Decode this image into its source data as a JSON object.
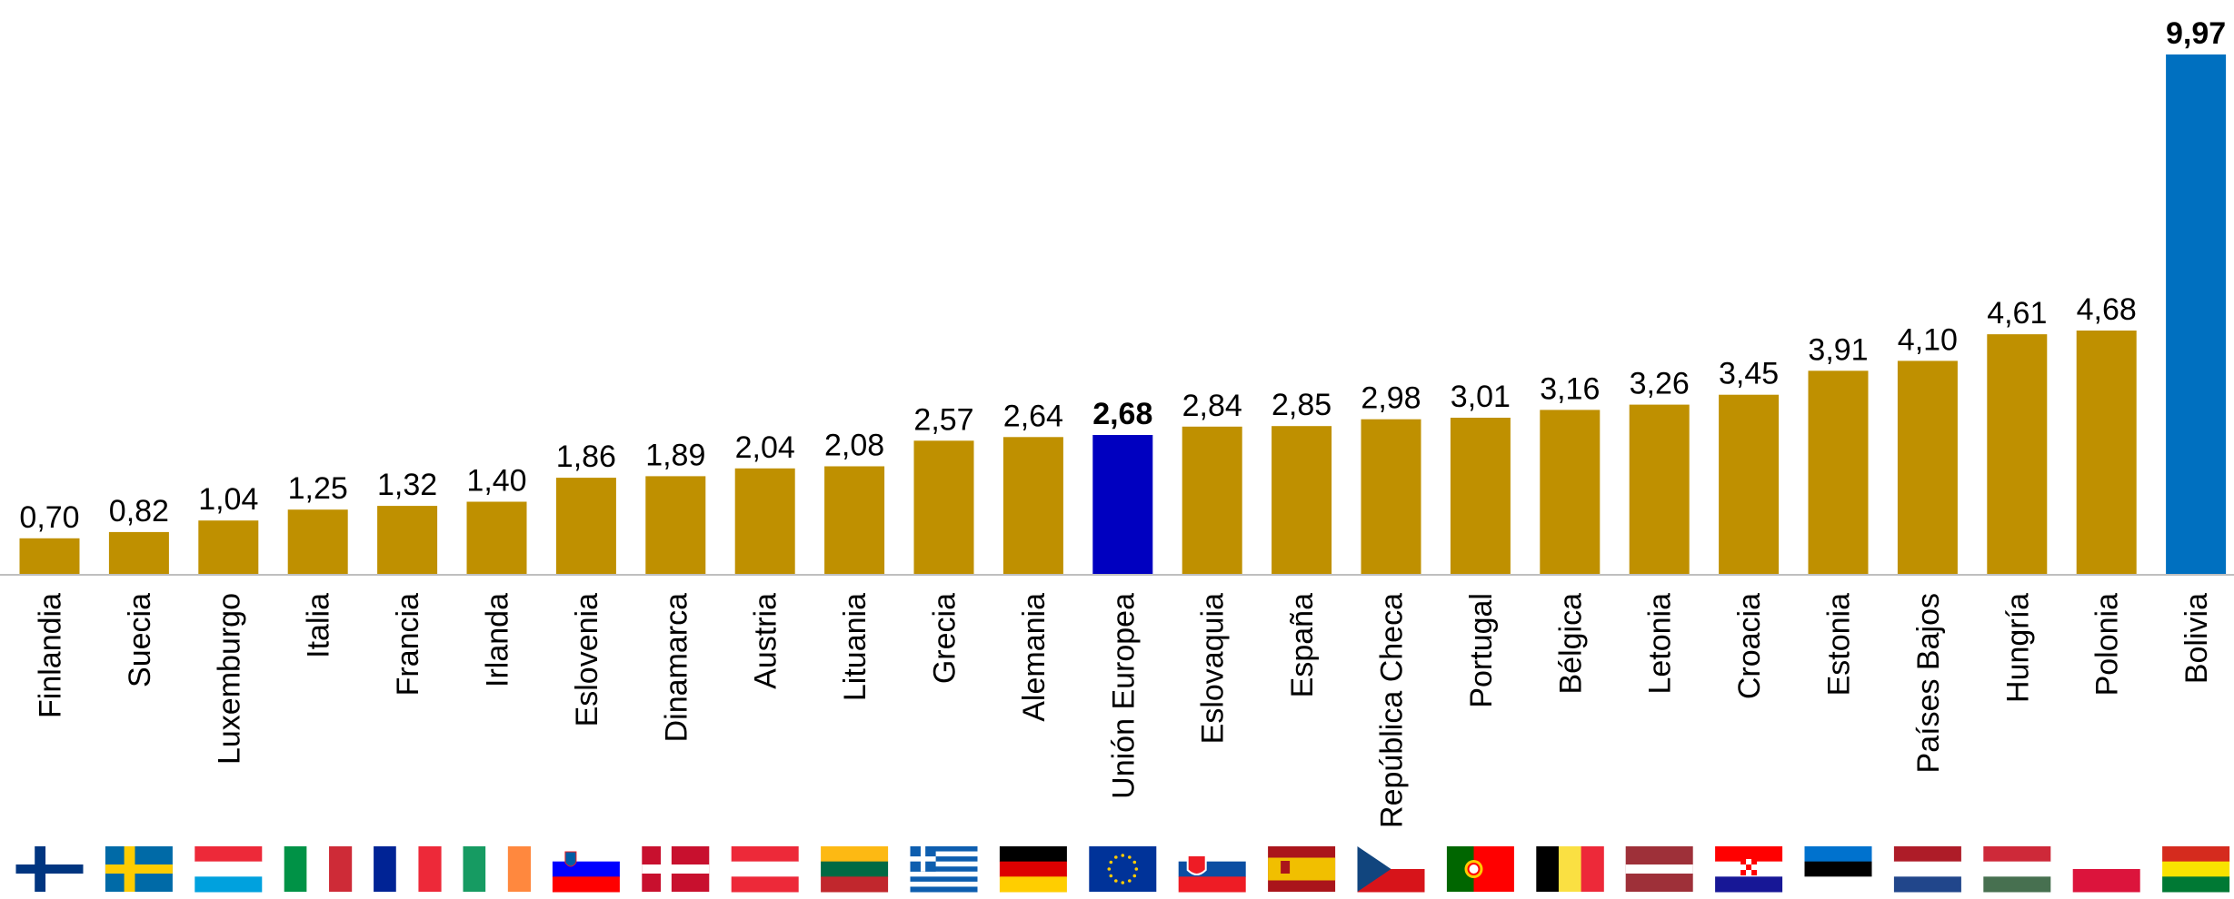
{
  "chart_data": {
    "type": "bar",
    "title": "",
    "xlabel": "",
    "ylabel": "",
    "ylim": [
      0,
      10
    ],
    "grid": false,
    "legend": "none",
    "value_format": "decimal-comma-2",
    "categories": [
      "Finlandia",
      "Suecia",
      "Luxemburgo",
      "Italia",
      "Francia",
      "Irlanda",
      "Eslovenia",
      "Dinamarca",
      "Austria",
      "Lituania",
      "Grecia",
      "Alemania",
      "Unión Europea",
      "Eslovaquia",
      "España",
      "República Checa",
      "Portugal",
      "Bélgica",
      "Letonia",
      "Croacia",
      "Estonia",
      "Países Bajos",
      "Hungría",
      "Polonia",
      "Bolivia"
    ],
    "values": [
      0.7,
      0.82,
      1.04,
      1.25,
      1.32,
      1.4,
      1.86,
      1.89,
      2.04,
      2.08,
      2.57,
      2.64,
      2.68,
      2.84,
      2.85,
      2.98,
      3.01,
      3.16,
      3.26,
      3.45,
      3.91,
      4.1,
      4.61,
      4.68,
      9.97
    ],
    "labels": [
      "0,70",
      "0,82",
      "1,04",
      "1,25",
      "1,32",
      "1,40",
      "1,86",
      "1,89",
      "2,04",
      "2,08",
      "2,57",
      "2,64",
      "2,68",
      "2,84",
      "2,85",
      "2,98",
      "3,01",
      "3,16",
      "3,26",
      "3,45",
      "3,91",
      "4,10",
      "4,61",
      "4,68",
      "9,97"
    ],
    "bar_colors": [
      "#BF9000",
      "#BF9000",
      "#BF9000",
      "#BF9000",
      "#BF9000",
      "#BF9000",
      "#BF9000",
      "#BF9000",
      "#BF9000",
      "#BF9000",
      "#BF9000",
      "#BF9000",
      "#0000C0",
      "#BF9000",
      "#BF9000",
      "#BF9000",
      "#BF9000",
      "#BF9000",
      "#BF9000",
      "#BF9000",
      "#BF9000",
      "#BF9000",
      "#BF9000",
      "#BF9000",
      "#0070C0"
    ],
    "highlight": [
      "Unión Europea",
      "Bolivia"
    ],
    "flags": [
      "finland-flag-icon",
      "sweden-flag-icon",
      "luxembourg-flag-icon",
      "italy-flag-icon",
      "france-flag-icon",
      "ireland-flag-icon",
      "slovenia-flag-icon",
      "denmark-flag-icon",
      "austria-flag-icon",
      "lithuania-flag-icon",
      "greece-flag-icon",
      "germany-flag-icon",
      "eu-flag-icon",
      "slovakia-flag-icon",
      "spain-flag-icon",
      "czech-flag-icon",
      "portugal-flag-icon",
      "belgium-flag-icon",
      "latvia-flag-icon",
      "croatia-flag-icon",
      "estonia-flag-icon",
      "netherlands-flag-icon",
      "hungary-flag-icon",
      "poland-flag-icon",
      "bolivia-flag-icon"
    ]
  }
}
